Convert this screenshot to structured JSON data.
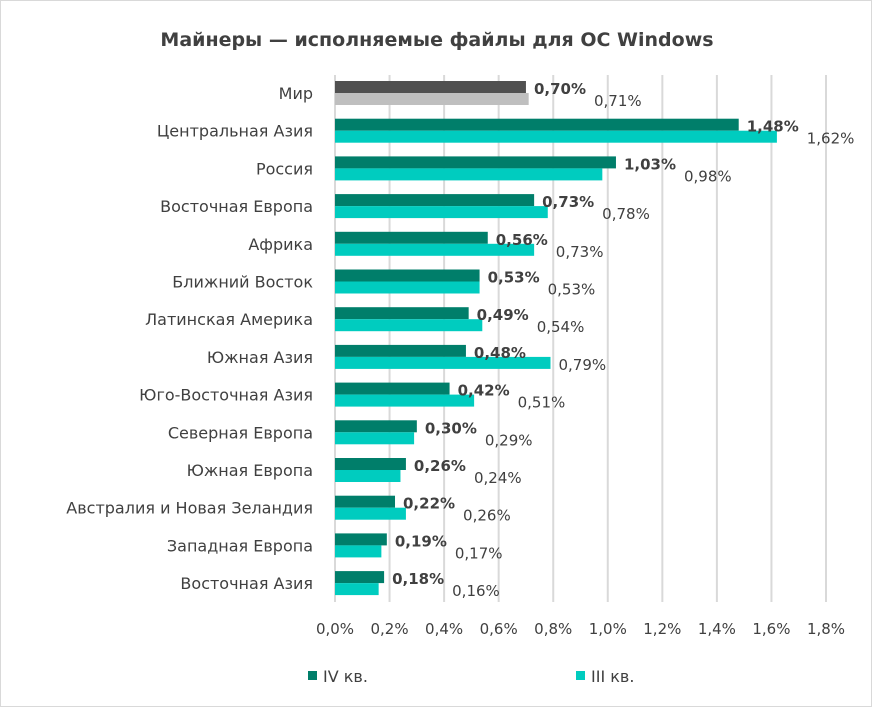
{
  "chart_data": {
    "type": "bar",
    "orientation": "horizontal",
    "title": "Майнеры — исполняемые файлы для ОС Windows",
    "categories": [
      "Мир",
      "Центральная Азия",
      "Россия",
      "Восточная Европа",
      "Африка",
      "Ближний Восток",
      "Латинская Америка",
      "Южная Азия",
      "Юго-Восточная Азия",
      "Северная Европа",
      "Южная Европа",
      "Австралия и Новая Зеландия",
      "Западная Европа",
      "Восточная Азия"
    ],
    "series": [
      {
        "name": "IV кв.",
        "values": [
          0.7,
          1.48,
          1.03,
          0.73,
          0.56,
          0.53,
          0.49,
          0.48,
          0.42,
          0.3,
          0.26,
          0.22,
          0.19,
          0.18
        ],
        "labels": [
          "0,70%",
          "1,48%",
          "1,03%",
          "0,73%",
          "0,56%",
          "0,53%",
          "0,49%",
          "0,48%",
          "0,42%",
          "0,30%",
          "0,26%",
          "0,22%",
          "0,19%",
          "0,18%"
        ],
        "color": "#007e6a",
        "highlight_color": "#505050"
      },
      {
        "name": "III кв.",
        "values": [
          0.71,
          1.62,
          0.98,
          0.78,
          0.73,
          0.53,
          0.54,
          0.79,
          0.51,
          0.29,
          0.24,
          0.26,
          0.17,
          0.16
        ],
        "labels": [
          "0,71%",
          "1,62%",
          "0,98%",
          "0,78%",
          "0,73%",
          "0,53%",
          "0,54%",
          "0,79%",
          "0,51%",
          "0,29%",
          "0,24%",
          "0,26%",
          "0,17%",
          "0,16%"
        ],
        "color": "#00ccbf",
        "highlight_color": "#bfbfbf"
      }
    ],
    "xlim": [
      0,
      1.8
    ],
    "xticks": [
      0,
      0.2,
      0.4,
      0.6,
      0.8,
      1.0,
      1.2,
      1.4,
      1.6,
      1.8
    ],
    "xtick_labels": [
      "0,0%",
      "0,2%",
      "0,4%",
      "0,6%",
      "0,8%",
      "1,0%",
      "1,2%",
      "1,4%",
      "1,6%",
      "1,8%"
    ],
    "grid": true,
    "legend_position": "bottom"
  }
}
